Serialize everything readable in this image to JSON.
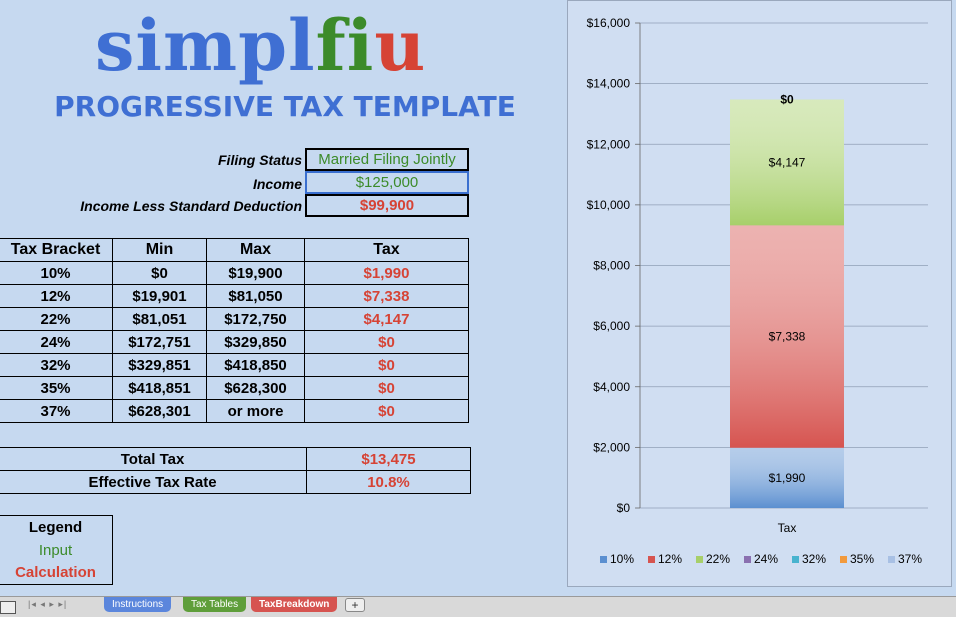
{
  "logo": {
    "part1": "simpl",
    "part2": "fi",
    "part3": "u"
  },
  "subtitle": "PROGRESSIVE TAX TEMPLATE",
  "inputs": {
    "filing_status_label": "Filing Status",
    "filing_status_value": "Married Filing Jointly",
    "income_label": "Income",
    "income_value": "$125,000",
    "deduction_label": "Income Less Standard Deduction",
    "deduction_value": "$99,900"
  },
  "table": {
    "headers": [
      "Tax Bracket",
      "Min",
      "Max",
      "Tax"
    ],
    "rows": [
      [
        "10%",
        "$0",
        "$19,900",
        "$1,990"
      ],
      [
        "12%",
        "$19,901",
        "$81,050",
        "$7,338"
      ],
      [
        "22%",
        "$81,051",
        "$172,750",
        "$4,147"
      ],
      [
        "24%",
        "$172,751",
        "$329,850",
        "$0"
      ],
      [
        "32%",
        "$329,851",
        "$418,850",
        "$0"
      ],
      [
        "35%",
        "$418,851",
        "$628,300",
        "$0"
      ],
      [
        "37%",
        "$628,301",
        "or more",
        "$0"
      ]
    ]
  },
  "totals": {
    "total_label": "Total Tax",
    "total_value": "$13,475",
    "rate_label": "Effective Tax Rate",
    "rate_value": "10.8%"
  },
  "legend": {
    "title": "Legend",
    "input": "Input",
    "calculation": "Calculation"
  },
  "tabs": {
    "instructions": "Instructions",
    "tax_tables": "Tax Tables",
    "tax_breakdown": "TaxBreakdown",
    "add": "+"
  },
  "colors": {
    "blue": "#3f6fd3",
    "green": "#3c8b2a",
    "red": "#d64335"
  },
  "chart_data": {
    "type": "bar",
    "stacked": true,
    "categories": [
      "Tax"
    ],
    "series": [
      {
        "name": "10%",
        "values": [
          1990
        ],
        "color": "#5b8fd0",
        "label": "$1,990"
      },
      {
        "name": "12%",
        "values": [
          7338
        ],
        "color": "#d65450",
        "label": "$7,338"
      },
      {
        "name": "22%",
        "values": [
          4147
        ],
        "color": "#a7cf6a",
        "label": "$4,147"
      },
      {
        "name": "24%",
        "values": [
          0
        ],
        "color": "#8a70b0",
        "label": ""
      },
      {
        "name": "32%",
        "values": [
          0
        ],
        "color": "#48b3cf",
        "label": ""
      },
      {
        "name": "35%",
        "values": [
          0
        ],
        "color": "#f29a3d",
        "label": ""
      },
      {
        "name": "37%",
        "values": [
          0
        ],
        "color": "#a8c0e4",
        "label": "$0"
      }
    ],
    "ylim": [
      0,
      16000
    ],
    "yticks": [
      "$0",
      "$2,000",
      "$4,000",
      "$6,000",
      "$8,000",
      "$10,000",
      "$12,000",
      "$14,000",
      "$16,000"
    ],
    "xlabel": "Tax",
    "legend_position": "bottom",
    "grid": true
  }
}
